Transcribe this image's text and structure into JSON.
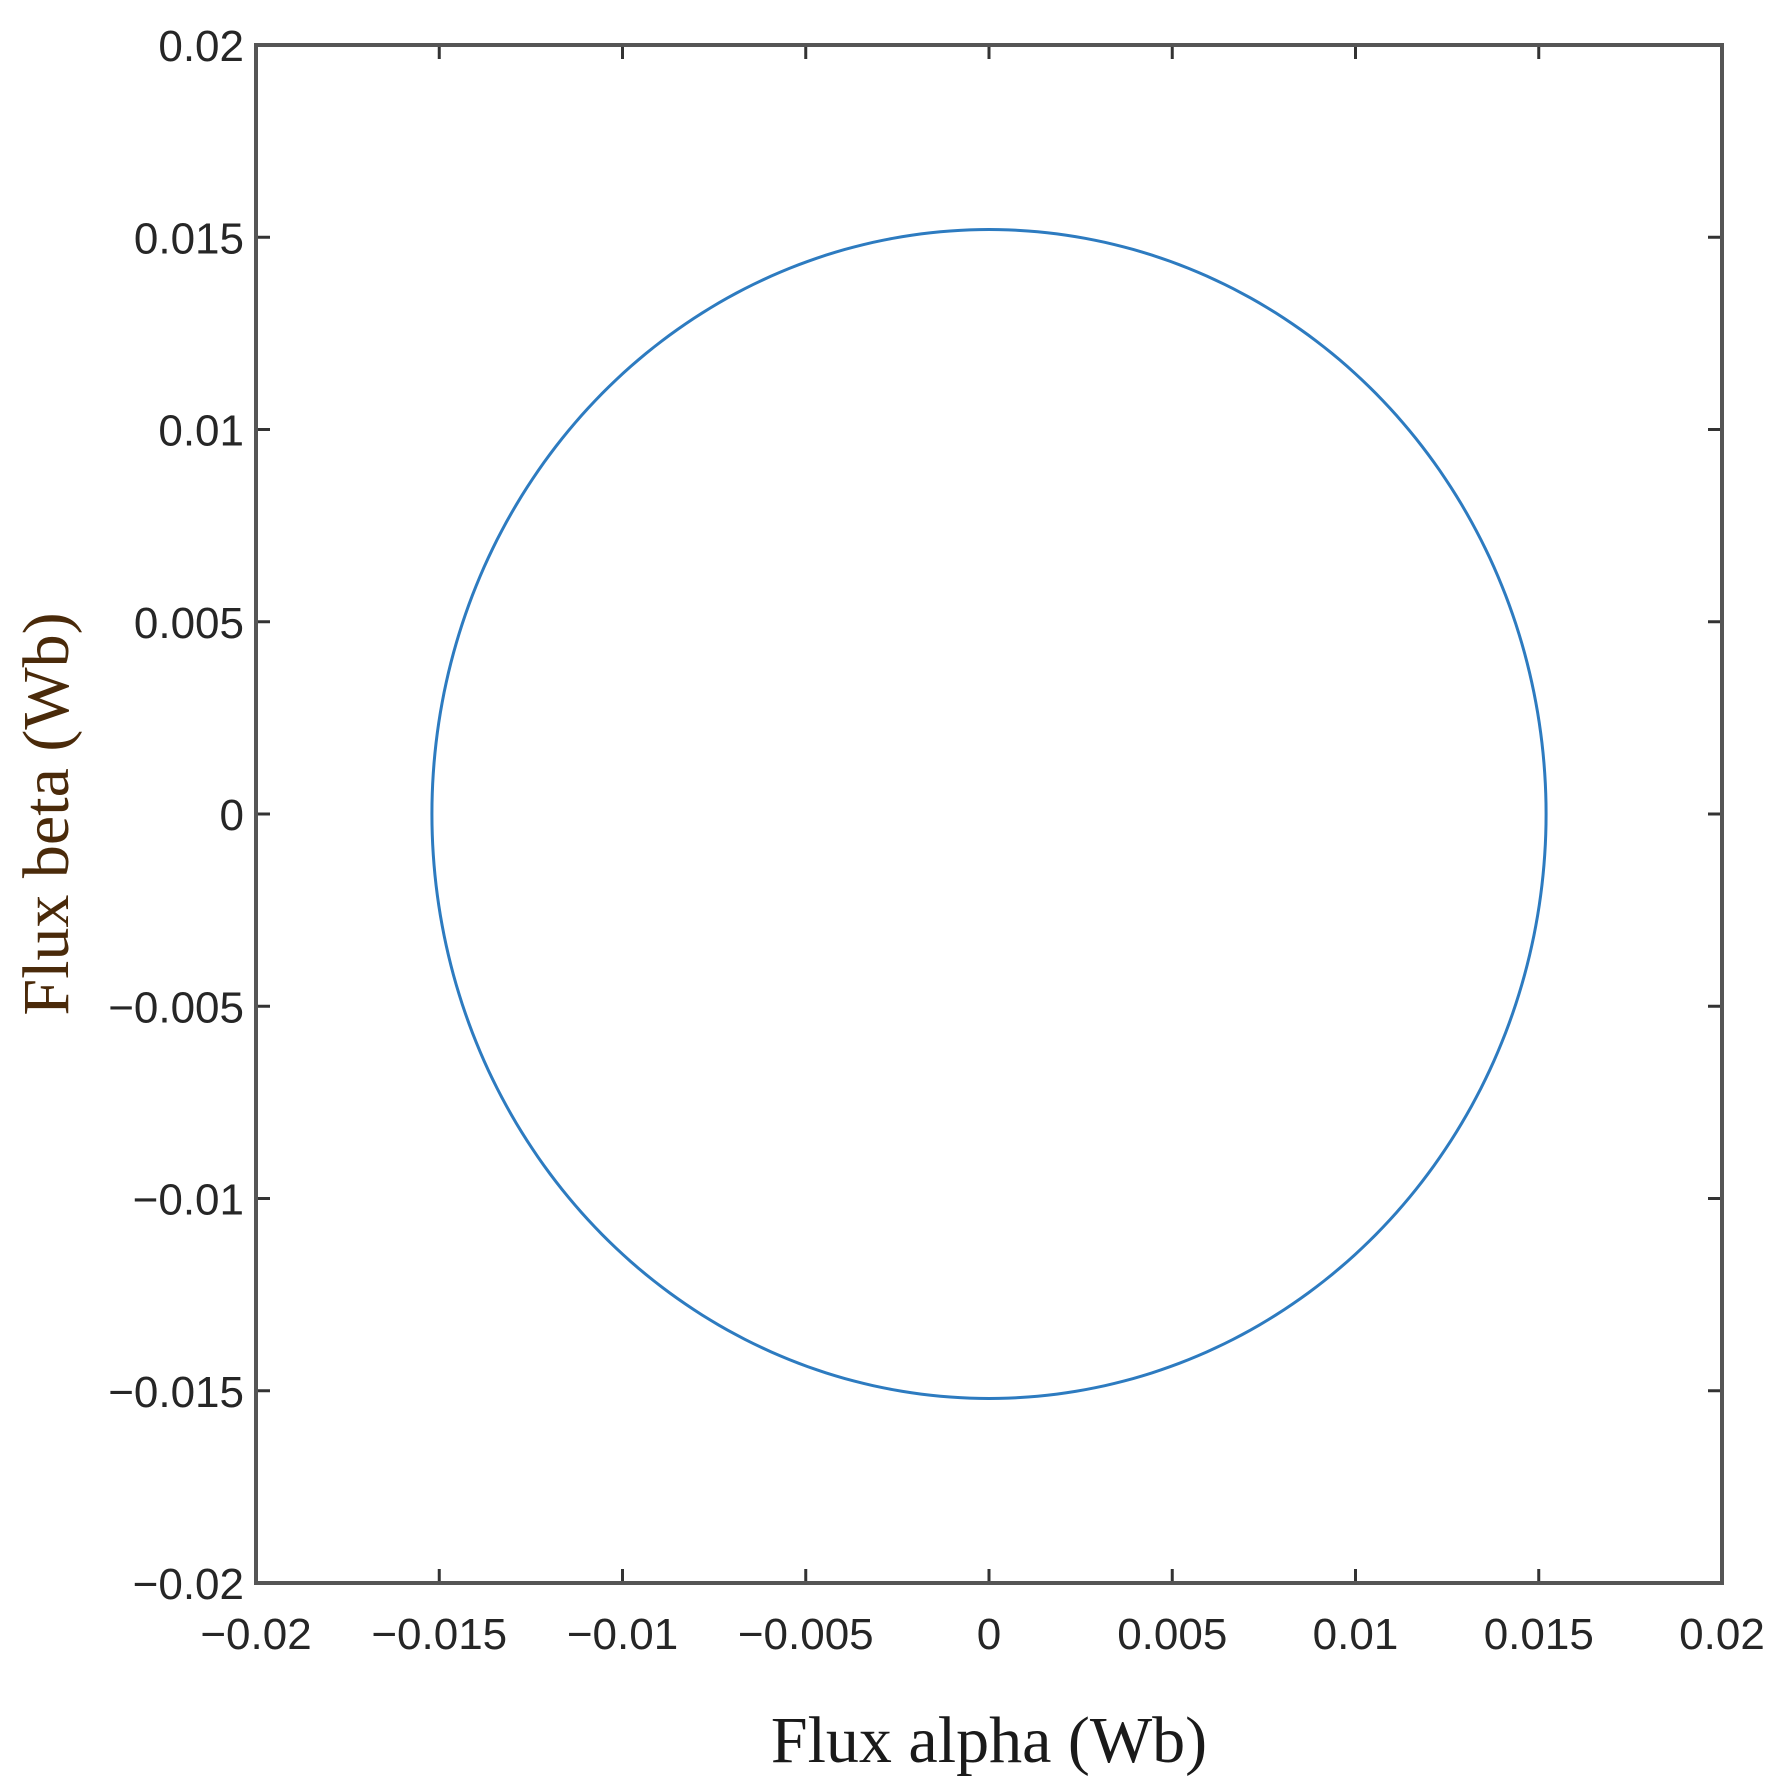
{
  "chart_data": {
    "type": "line",
    "title": "",
    "xlabel": "Flux alpha (Wb)",
    "ylabel": "Flux beta (Wb)",
    "xlim": [
      -0.02,
      0.02
    ],
    "ylim": [
      -0.02,
      0.02
    ],
    "x_ticks": [
      -0.02,
      -0.015,
      -0.01,
      -0.005,
      0,
      0.005,
      0.01,
      0.015,
      0.02
    ],
    "x_tick_labels": [
      "−0.02",
      "−0.015",
      "−0.01",
      "−0.005",
      "0",
      "0.005",
      "0.01",
      "0.015",
      "0.02"
    ],
    "y_ticks": [
      0.02,
      0.015,
      0.01,
      0.005,
      0,
      -0.005,
      -0.01,
      -0.015,
      -0.02
    ],
    "y_tick_labels": [
      "0.02",
      "0.015",
      "0.01",
      "0.005",
      "0",
      "−0.005",
      "−0.01",
      "−0.015",
      "−0.02"
    ],
    "grid": false,
    "series": [
      {
        "color": "#2d7bc0",
        "shape": "circle",
        "center": [
          0,
          0
        ],
        "radius": 0.0152
      }
    ]
  }
}
